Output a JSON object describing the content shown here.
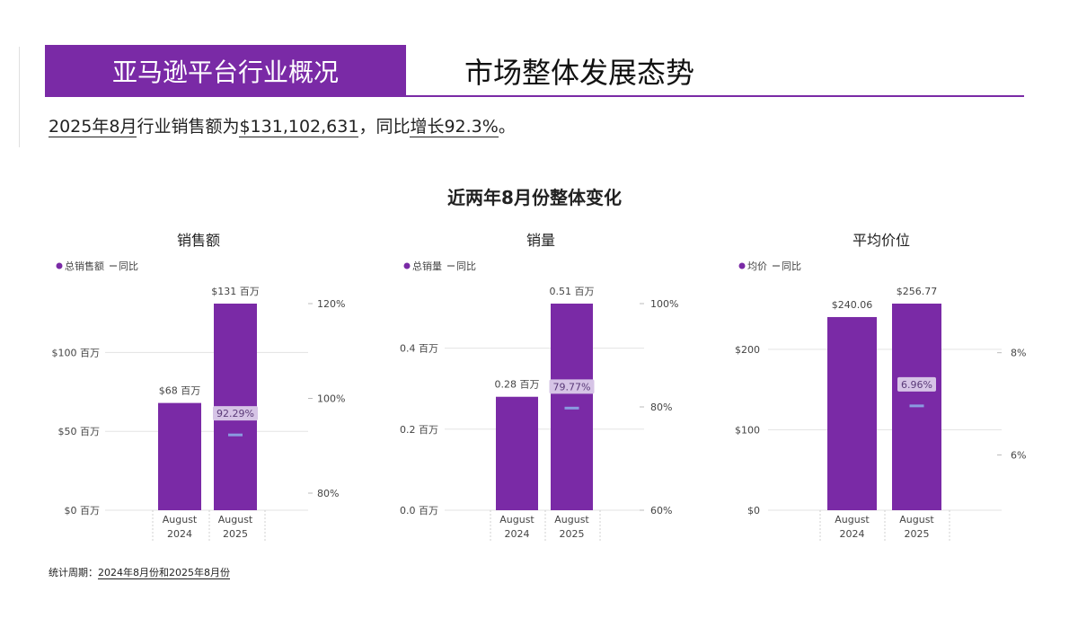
{
  "header": {
    "banner_title": "亚马逊平台行业概况",
    "section_title": "市场整体发展态势",
    "brand_color": "#7a2aa6"
  },
  "headline": {
    "prefix": "2025年8月",
    "mid1": "行业销售额为",
    "amount": "$131,102,631",
    "mid2": "，同比",
    "growth": "增长92.3%",
    "suffix": "。"
  },
  "main_title": "近两年8月份整体变化",
  "footnote": {
    "label": "统计周期：",
    "period": "2024年8月份和2025年8月份"
  },
  "chart_data": [
    {
      "type": "bar",
      "title": "销售额",
      "categories": [
        "August 2024",
        "August 2025"
      ],
      "bar_color": "#7a2aa6",
      "yoy_color": "#8a9be0",
      "series": [
        {
          "name": "总销售额",
          "values": [
            68,
            131
          ],
          "unit": "百万",
          "data_labels": [
            "$68 百万",
            "$131 百万"
          ]
        },
        {
          "name": "同比",
          "values": [
            null,
            92.29
          ],
          "unit": "%",
          "data_labels": [
            "",
            "92.29%"
          ]
        }
      ],
      "y_left": {
        "ticks": [
          0,
          50,
          100
        ],
        "tick_labels": [
          "$0 百万",
          "$50 百万",
          "$100 百万"
        ],
        "range": [
          0,
          131
        ]
      },
      "y_right": {
        "ticks": [
          80,
          100,
          120
        ],
        "tick_labels": [
          "80%",
          "100%",
          "120%"
        ],
        "range": [
          76.4,
          120
        ]
      },
      "grid": true,
      "legend_position": "top-left"
    },
    {
      "type": "bar",
      "title": "销量",
      "categories": [
        "August 2024",
        "August 2025"
      ],
      "bar_color": "#7a2aa6",
      "yoy_color": "#8a9be0",
      "series": [
        {
          "name": "总销量",
          "values": [
            0.28,
            0.51
          ],
          "unit": "百万",
          "data_labels": [
            "0.28 百万",
            "0.51 百万"
          ]
        },
        {
          "name": "同比",
          "values": [
            null,
            79.77
          ],
          "unit": "%",
          "data_labels": [
            "",
            "79.77%"
          ]
        }
      ],
      "y_left": {
        "ticks": [
          0,
          0.2,
          0.4
        ],
        "tick_labels": [
          "0.0 百万",
          "0.2 百万",
          "0.4 百万"
        ],
        "range": [
          0,
          0.51
        ]
      },
      "y_right": {
        "ticks": [
          60,
          80,
          100
        ],
        "tick_labels": [
          "60%",
          "80%",
          "100%"
        ],
        "range": [
          60,
          100
        ]
      },
      "grid": true,
      "legend_position": "top-left"
    },
    {
      "type": "bar",
      "title": "平均价位",
      "categories": [
        "August 2024",
        "August 2025"
      ],
      "bar_color": "#7a2aa6",
      "yoy_color": "#8a9be0",
      "series": [
        {
          "name": "均价",
          "values": [
            240.06,
            256.77
          ],
          "unit": "$",
          "data_labels": [
            "$240.06",
            "$256.77"
          ]
        },
        {
          "name": "同比",
          "values": [
            null,
            6.96
          ],
          "unit": "%",
          "data_labels": [
            "",
            "6.96%"
          ]
        }
      ],
      "y_left": {
        "ticks": [
          0,
          100,
          200
        ],
        "tick_labels": [
          "$0",
          "$100",
          "$200"
        ],
        "range": [
          0,
          256.77
        ]
      },
      "y_right": {
        "ticks": [
          6,
          8
        ],
        "tick_labels": [
          "6%",
          "8%"
        ],
        "range": [
          4.92,
          8.96
        ]
      },
      "grid": true,
      "legend_position": "top-left"
    }
  ]
}
